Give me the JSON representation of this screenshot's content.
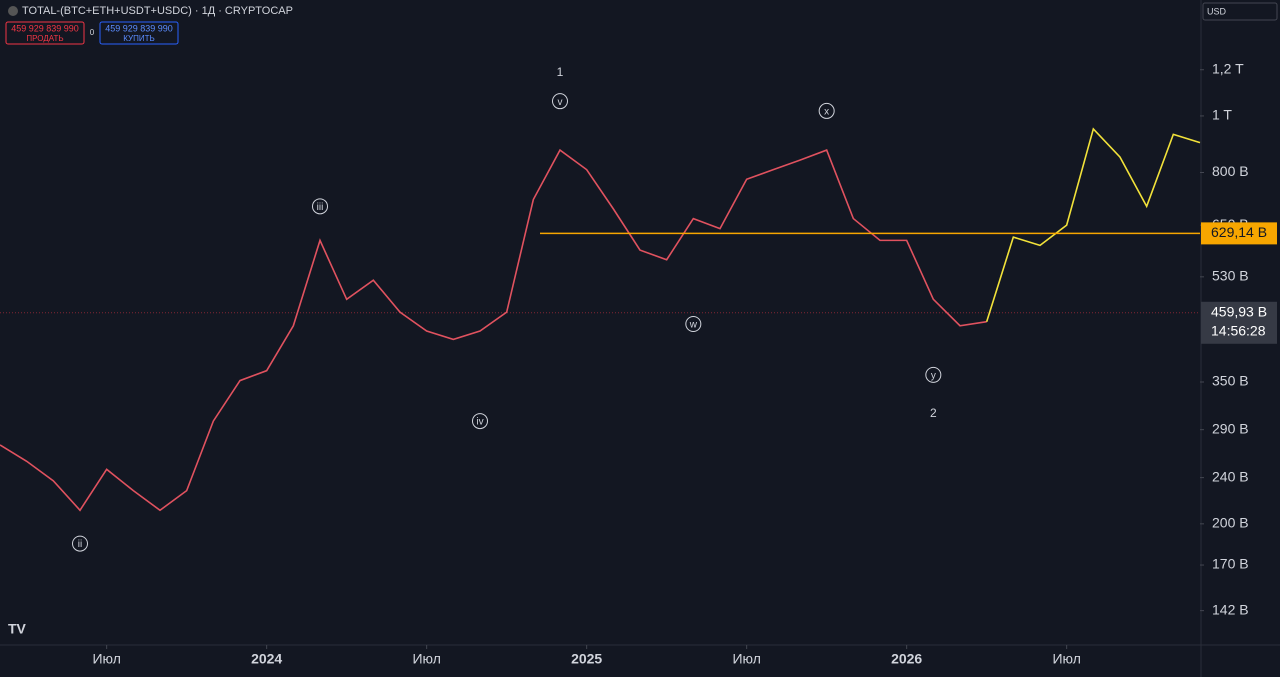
{
  "header": {
    "symbol": "TOTAL-(BTC+ETH+USDT+USDC) · 1Д · CRYPTOCAP",
    "sell_price": "459 929 839 990",
    "sell": "ПРОДАТЬ",
    "spread": "0",
    "buy_price": "459 929 839 990",
    "buy": "КУПИТЬ",
    "currency": "USD"
  },
  "chart_data": {
    "type": "line",
    "log_scale": true,
    "xlim": [
      "2023-03",
      "2026-12"
    ],
    "xticks": [
      {
        "value": "2023-07",
        "label": "Июл"
      },
      {
        "value": "2024-01",
        "label": "2024"
      },
      {
        "value": "2024-07",
        "label": "Июл"
      },
      {
        "value": "2025-01",
        "label": "2025"
      },
      {
        "value": "2025-07",
        "label": "Июл"
      },
      {
        "value": "2026-01",
        "label": "2026"
      },
      {
        "value": "2026-07",
        "label": "Июл"
      }
    ],
    "ylim": [
      124,
      1580
    ],
    "yticks": [
      {
        "value": 1200,
        "label": "1,2 T"
      },
      {
        "value": 1000,
        "label": "1 T"
      },
      {
        "value": 800,
        "label": "800 B"
      },
      {
        "value": 650,
        "label": "650 B"
      },
      {
        "value": 530,
        "label": "530 B"
      },
      {
        "value": 350,
        "label": "350 B"
      },
      {
        "value": 290,
        "label": "290 B"
      },
      {
        "value": 240,
        "label": "240 B"
      },
      {
        "value": 200,
        "label": "200 B"
      },
      {
        "value": 170,
        "label": "170 B"
      },
      {
        "value": 142,
        "label": "142 B"
      }
    ],
    "series": [
      {
        "color": "#e0525f",
        "x": [
          "2023-03",
          "2023-04",
          "2023-05",
          "2023-06",
          "2023-07",
          "2023-08",
          "2023-09",
          "2023-10",
          "2023-11",
          "2023-12",
          "2024-01",
          "2024-02",
          "2024-03",
          "2024-04",
          "2024-05",
          "2024-06",
          "2024-07",
          "2024-08",
          "2024-09",
          "2024-10",
          "2024-11",
          "2024-12",
          "2025-01",
          "2025-02",
          "2025-03",
          "2025-04",
          "2025-05",
          "2025-06",
          "2025-07",
          "2025-08",
          "2025-09",
          "2025-10",
          "2025-11",
          "2025-12",
          "2026-01",
          "2026-02",
          "2026-03",
          "2026-04"
        ],
        "values": [
          273,
          256,
          237,
          211,
          248,
          228,
          211,
          228,
          300,
          352,
          366,
          437,
          612,
          485,
          523,
          461,
          428,
          414,
          428,
          461,
          719,
          874,
          809,
          693,
          589,
          567,
          667,
          641,
          779,
          809,
          840,
          874,
          667,
          612,
          612,
          485,
          437,
          444
        ]
      },
      {
        "color": "#f2e23a",
        "x": [
          "2026-04",
          "2026-05",
          "2026-06",
          "2026-07",
          "2026-08",
          "2026-09",
          "2026-10",
          "2026-11",
          "2026-12"
        ],
        "values": [
          444,
          620,
          600,
          650,
          950,
          850,
          700,
          930,
          900
        ]
      }
    ],
    "level": {
      "value": 629.14,
      "label": "629,14 B",
      "color": "#f7a600"
    },
    "current": {
      "value": 459.93,
      "label": "459,93 B",
      "timer": "14:56:28"
    },
    "annotations": [
      {
        "text": "ii",
        "x": "2023-06",
        "y": 185,
        "circled": true
      },
      {
        "text": "iii",
        "x": "2024-03",
        "y": 700,
        "circled": true
      },
      {
        "text": "iv",
        "x": "2024-09",
        "y": 300,
        "circled": true
      },
      {
        "text": "1",
        "x": "2024-12",
        "y": 1190,
        "circled": false
      },
      {
        "text": "v",
        "x": "2024-12",
        "y": 1060,
        "circled": true
      },
      {
        "text": "w",
        "x": "2025-05",
        "y": 440,
        "circled": true
      },
      {
        "text": "x",
        "x": "2025-10",
        "y": 1020,
        "circled": true
      },
      {
        "text": "y",
        "x": "2026-02",
        "y": 360,
        "circled": true
      },
      {
        "text": "2",
        "x": "2026-02",
        "y": 310,
        "circled": false
      }
    ]
  }
}
